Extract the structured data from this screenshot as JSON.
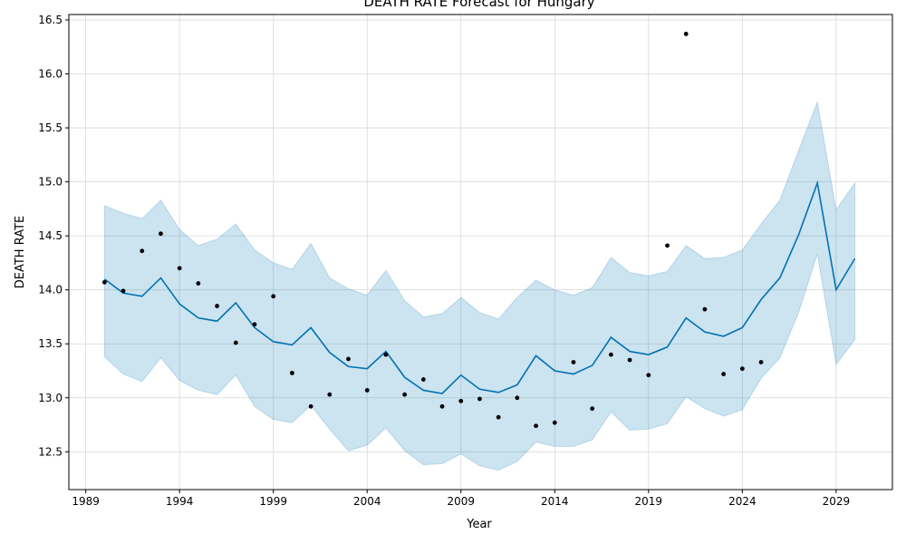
{
  "chart_data": {
    "type": "line",
    "title": "DEATH RATE Forecast for Hungary",
    "xlabel": "Year",
    "ylabel": "DEATH RATE",
    "xlim": [
      1988.1,
      2032.0
    ],
    "ylim": [
      12.15,
      16.55
    ],
    "xticks": [
      1989,
      1994,
      1999,
      2004,
      2009,
      2014,
      2019,
      2024,
      2029
    ],
    "yticks": [
      12.5,
      13.0,
      13.5,
      14.0,
      14.5,
      15.0,
      15.5,
      16.0,
      16.5
    ],
    "ytick_labels": [
      "12.5",
      "13.0",
      "13.5",
      "14.0",
      "14.5",
      "15.0",
      "15.5",
      "16.0",
      "16.5"
    ],
    "grid": true,
    "colors": {
      "forecast": "#0072B2",
      "band": "#0072B2",
      "observed": "#000000",
      "grid": "#d9d9d9"
    },
    "series": [
      {
        "kind": "forecast",
        "x": [
          1990,
          1991,
          1992,
          1993,
          1994,
          1995,
          1996,
          1997,
          1998,
          1999,
          2000,
          2001,
          2002,
          2003,
          2004,
          2005,
          2006,
          2007,
          2008,
          2009,
          2010,
          2011,
          2012,
          2013,
          2014,
          2015,
          2016,
          2017,
          2018,
          2019,
          2020,
          2021,
          2022,
          2023,
          2024,
          2025,
          2026,
          2027,
          2028,
          2029,
          2030
        ],
        "y": [
          14.1,
          13.97,
          13.94,
          14.11,
          13.87,
          13.74,
          13.71,
          13.88,
          13.65,
          13.52,
          13.49,
          13.65,
          13.42,
          13.29,
          13.27,
          13.43,
          13.19,
          13.07,
          13.04,
          13.21,
          13.08,
          13.05,
          13.12,
          13.39,
          13.25,
          13.22,
          13.3,
          13.56,
          13.43,
          13.4,
          13.47,
          13.74,
          13.61,
          13.57,
          13.65,
          13.91,
          14.11,
          14.51,
          14.99,
          14.0,
          14.29
        ],
        "lower": [
          13.38,
          13.22,
          13.15,
          13.37,
          13.16,
          13.07,
          13.03,
          13.21,
          12.92,
          12.8,
          12.77,
          12.93,
          12.71,
          12.51,
          12.56,
          12.72,
          12.51,
          12.38,
          12.39,
          12.48,
          12.37,
          12.33,
          12.41,
          12.59,
          12.55,
          12.55,
          12.61,
          12.87,
          12.7,
          12.71,
          12.76,
          13.01,
          12.9,
          12.83,
          12.89,
          13.18,
          13.37,
          13.79,
          14.33,
          13.31,
          13.54
        ],
        "upper": [
          14.78,
          14.71,
          14.66,
          14.83,
          14.56,
          14.41,
          14.47,
          14.61,
          14.37,
          14.25,
          14.19,
          14.43,
          14.11,
          14.01,
          13.95,
          14.18,
          13.9,
          13.75,
          13.78,
          13.93,
          13.79,
          13.73,
          13.93,
          14.09,
          14.0,
          13.95,
          14.02,
          14.3,
          14.16,
          14.13,
          14.17,
          14.41,
          14.29,
          14.3,
          14.37,
          14.61,
          14.83,
          15.29,
          15.74,
          14.74,
          14.99
        ]
      },
      {
        "kind": "observed",
        "x": [
          1990,
          1991,
          1992,
          1993,
          1994,
          1995,
          1996,
          1997,
          1998,
          1999,
          2000,
          2001,
          2002,
          2003,
          2004,
          2005,
          2006,
          2007,
          2008,
          2009,
          2010,
          2011,
          2012,
          2013,
          2014,
          2015,
          2016,
          2017,
          2018,
          2019,
          2020,
          2021,
          2022,
          2023,
          2024,
          2025
        ],
        "y": [
          14.07,
          13.99,
          14.36,
          14.52,
          14.2,
          14.06,
          13.85,
          13.51,
          13.68,
          13.94,
          13.23,
          12.92,
          13.03,
          13.36,
          13.07,
          13.4,
          13.03,
          13.17,
          12.92,
          12.97,
          12.99,
          12.82,
          13.0,
          12.74,
          12.77,
          13.33,
          12.9,
          13.4,
          13.35,
          13.21,
          14.41,
          16.37,
          13.82,
          13.22,
          13.27,
          13.33
        ]
      }
    ]
  }
}
